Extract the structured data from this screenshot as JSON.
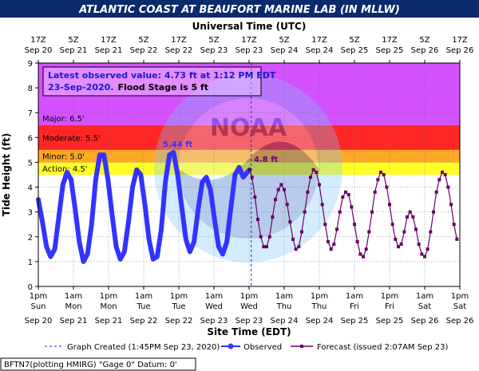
{
  "chart_data": {
    "type": "line",
    "title": "ATLANTIC COAST AT BEAUFORT MARINE LAB (IN MLLW)",
    "top_axis_label": "Universal Time (UTC)",
    "xlabel": "Site Time (EDT)",
    "ylabel": "Tide Height (ft)",
    "ylim": [
      0,
      9
    ],
    "xlim": [
      "2020-09-20 13:00 EDT",
      "2020-09-26 13:00 EDT"
    ],
    "grid": true,
    "legend_position": "bottom",
    "y_ticks": [
      "0",
      "1",
      "2",
      "3",
      "4",
      "5",
      "6",
      "7",
      "8",
      "9"
    ],
    "bottom_ticks": [
      {
        "t": "1pm",
        "d": "Sun",
        "dt": "Sep 20"
      },
      {
        "t": "1am",
        "d": "Mon",
        "dt": "Sep 21"
      },
      {
        "t": "1pm",
        "d": "Mon",
        "dt": "Sep 21"
      },
      {
        "t": "1am",
        "d": "Tue",
        "dt": "Sep 22"
      },
      {
        "t": "1pm",
        "d": "Tue",
        "dt": "Sep 22"
      },
      {
        "t": "1am",
        "d": "Wed",
        "dt": "Sep 23"
      },
      {
        "t": "1pm",
        "d": "Wed",
        "dt": "Sep 23"
      },
      {
        "t": "1am",
        "d": "Thu",
        "dt": "Sep 24"
      },
      {
        "t": "1pm",
        "d": "Thu",
        "dt": "Sep 24"
      },
      {
        "t": "1am",
        "d": "Fri",
        "dt": "Sep 25"
      },
      {
        "t": "1pm",
        "d": "Fri",
        "dt": "Sep 25"
      },
      {
        "t": "1am",
        "d": "Sat",
        "dt": "Sep 26"
      },
      {
        "t": "1pm",
        "d": "Sat",
        "dt": "Sep 26"
      }
    ],
    "top_ticks": [
      {
        "t": "17Z",
        "dt": "Sep 20"
      },
      {
        "t": "5Z",
        "dt": "Sep 21"
      },
      {
        "t": "17Z",
        "dt": "Sep 21"
      },
      {
        "t": "5Z",
        "dt": "Sep 22"
      },
      {
        "t": "17Z",
        "dt": "Sep 22"
      },
      {
        "t": "5Z",
        "dt": "Sep 23"
      },
      {
        "t": "17Z",
        "dt": "Sep 23"
      },
      {
        "t": "5Z",
        "dt": "Sep 24"
      },
      {
        "t": "17Z",
        "dt": "Sep 24"
      },
      {
        "t": "5Z",
        "dt": "Sep 25"
      },
      {
        "t": "17Z",
        "dt": "Sep 25"
      },
      {
        "t": "5Z",
        "dt": "Sep 26"
      },
      {
        "t": "17Z",
        "dt": "Sep 26"
      }
    ],
    "flood_stages": [
      {
        "name": "Action",
        "label": "Action:  4.5'",
        "from": 4.5,
        "to": 5.0,
        "color": "#ffff00"
      },
      {
        "name": "Minor",
        "label": "Minor:  5.0'",
        "from": 5.0,
        "to": 5.5,
        "color": "#ff9900"
      },
      {
        "name": "Moderate",
        "label": "Moderate:  5.5'",
        "from": 5.5,
        "to": 6.5,
        "color": "#ff0000"
      },
      {
        "name": "Major",
        "label": "Major:  6.5'",
        "from": 6.5,
        "to": 9.0,
        "color": "#cc33ff"
      }
    ],
    "info_box": {
      "line1": "Latest observed value: 4.73  ft at 1:12 PM EDT",
      "line2_date": "23-Sep-2020.",
      "line2_flood": "Flood Stage is 5 ft"
    },
    "annotations": {
      "observed_max_label": "5.44 ft",
      "forecast_max_label": "4.8 ft"
    },
    "series": [
      {
        "name": "Observed",
        "color": "#3333ff",
        "x_hours_from_sep20_1pm": [
          0.0,
          1.4,
          2.8,
          4.2,
          5.6,
          7.0,
          8.4,
          9.8,
          11.2,
          12.6,
          14.0,
          15.4,
          16.8,
          18.2,
          19.6,
          21.0,
          22.4,
          23.8,
          25.2,
          26.6,
          28.0,
          29.4,
          30.8,
          32.2,
          33.6,
          35.0,
          36.4,
          37.8,
          39.2,
          40.6,
          42.0,
          43.4,
          44.8,
          46.2,
          47.6,
          49.0,
          50.4,
          51.8,
          53.2,
          54.6,
          56.0,
          57.4,
          58.8,
          60.2,
          61.6,
          63.0,
          64.4,
          65.8,
          67.2,
          68.6,
          70.0,
          71.4,
          72.2
        ],
        "values": [
          3.5,
          2.6,
          1.6,
          1.2,
          1.5,
          2.8,
          4.1,
          4.6,
          4.3,
          3.1,
          1.8,
          1.0,
          1.3,
          2.5,
          4.3,
          5.3,
          5.3,
          4.3,
          2.9,
          1.6,
          1.1,
          1.4,
          2.6,
          4.0,
          4.7,
          4.5,
          3.3,
          1.9,
          1.1,
          1.2,
          2.3,
          4.2,
          5.3,
          5.4,
          4.5,
          3.2,
          1.9,
          1.4,
          1.8,
          3.1,
          4.2,
          4.4,
          3.9,
          2.7,
          1.6,
          1.3,
          1.8,
          3.2,
          4.5,
          4.8,
          4.4,
          4.6,
          4.7
        ]
      },
      {
        "name": "Forecast (issued 2:07AM Sep 23)",
        "color": "#660066",
        "x_hours_from_sep20_1pm": [
          72.2,
          73.0,
          74.0,
          75.0,
          76.0,
          77.0,
          78.0,
          79.0,
          80.0,
          81.0,
          82.0,
          83.0,
          84.0,
          85.0,
          86.0,
          87.0,
          88.0,
          89.0,
          90.0,
          91.0,
          92.0,
          93.0,
          94.0,
          95.0,
          96.0,
          97.0,
          98.0,
          99.0,
          100.0,
          101.0,
          102.0,
          103.0,
          104.0,
          105.0,
          106.0,
          107.0,
          108.0,
          109.0,
          110.0,
          111.0,
          112.0,
          113.0,
          114.0,
          115.0,
          116.0,
          117.0,
          118.0,
          119.0,
          120.0,
          121.0,
          122.0,
          123.0,
          124.0,
          125.0,
          126.0,
          127.0,
          128.0,
          129.0,
          130.0,
          131.0,
          132.0,
          133.0,
          134.0,
          135.0,
          136.0,
          137.0,
          138.0,
          139.0,
          140.0,
          141.0,
          142.0,
          143.0
        ],
        "values": [
          4.7,
          4.4,
          3.6,
          2.7,
          2.0,
          1.6,
          1.6,
          2.0,
          2.8,
          3.5,
          3.9,
          4.1,
          3.9,
          3.3,
          2.6,
          1.9,
          1.5,
          1.6,
          2.2,
          3.0,
          3.8,
          4.4,
          4.7,
          4.6,
          4.1,
          3.3,
          2.5,
          1.8,
          1.5,
          1.7,
          2.3,
          3.0,
          3.6,
          3.8,
          3.7,
          3.2,
          2.5,
          1.8,
          1.3,
          1.2,
          1.5,
          2.2,
          3.0,
          3.8,
          4.3,
          4.6,
          4.5,
          4.0,
          3.3,
          2.5,
          1.9,
          1.6,
          1.7,
          2.2,
          2.8,
          3.0,
          2.8,
          2.3,
          1.7,
          1.3,
          1.2,
          1.5,
          2.2,
          3.0,
          3.8,
          4.3,
          4.6,
          4.5,
          4.0,
          3.3,
          2.5,
          1.9
        ]
      }
    ],
    "graph_created_marker_hour": 72.75,
    "legend": {
      "graph_created": "Graph Created (1:45PM Sep 23, 2020)",
      "observed": "Observed",
      "forecast": "Forecast (issued 2:07AM Sep 23)"
    },
    "footer": "BFTN7(plotting HMIRG) \"Gage 0\" Datum:  0'"
  }
}
